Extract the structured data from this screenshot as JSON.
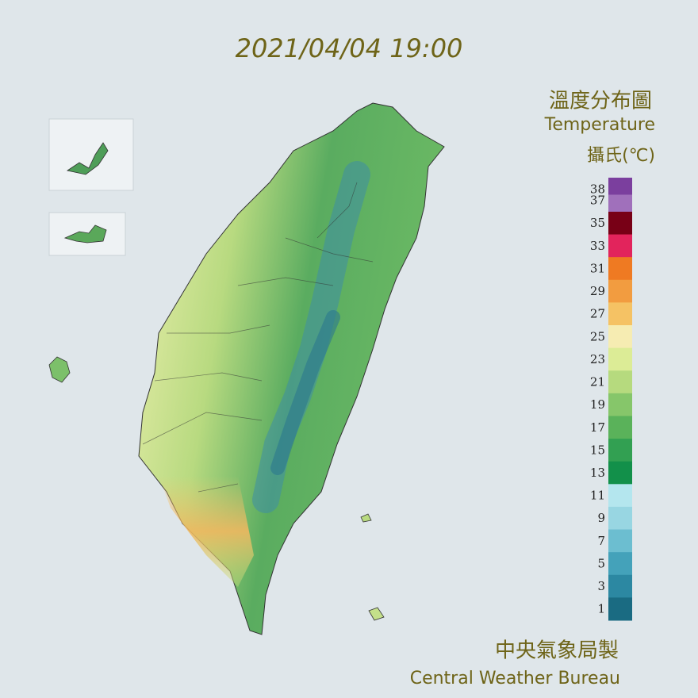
{
  "header": {
    "timestamp": "2021/04/04 19:00",
    "title": "溫度分布圖",
    "title_en": "Temperature",
    "unit": "攝氏(℃)"
  },
  "legend": {
    "entries": [
      {
        "label": 38,
        "color": "#7b3f9e"
      },
      {
        "label": 37,
        "color": "#a070bb"
      },
      {
        "label": 35,
        "color": "#780016"
      },
      {
        "label": 33,
        "color": "#e2245c"
      },
      {
        "label": 31,
        "color": "#ef7a22"
      },
      {
        "label": 29,
        "color": "#f29c40"
      },
      {
        "label": 27,
        "color": "#f5c264"
      },
      {
        "label": 25,
        "color": "#f6ecb2"
      },
      {
        "label": 23,
        "color": "#dcec96"
      },
      {
        "label": 21,
        "color": "#b6da7e"
      },
      {
        "label": 19,
        "color": "#86c66a"
      },
      {
        "label": 17,
        "color": "#5ab25a"
      },
      {
        "label": 15,
        "color": "#32a052"
      },
      {
        "label": 13,
        "color": "#12904a"
      },
      {
        "label": 11,
        "color": "#b4e6ee"
      },
      {
        "label": 9,
        "color": "#98d6e2"
      },
      {
        "label": 7,
        "color": "#6cbed0"
      },
      {
        "label": 5,
        "color": "#44a2ba"
      },
      {
        "label": 3,
        "color": "#2c88a2"
      },
      {
        "label": 1,
        "color": "#1a6b82"
      }
    ]
  },
  "footer": {
    "agency": "中央氣象局製",
    "agency_en": "Central Weather Bureau"
  }
}
